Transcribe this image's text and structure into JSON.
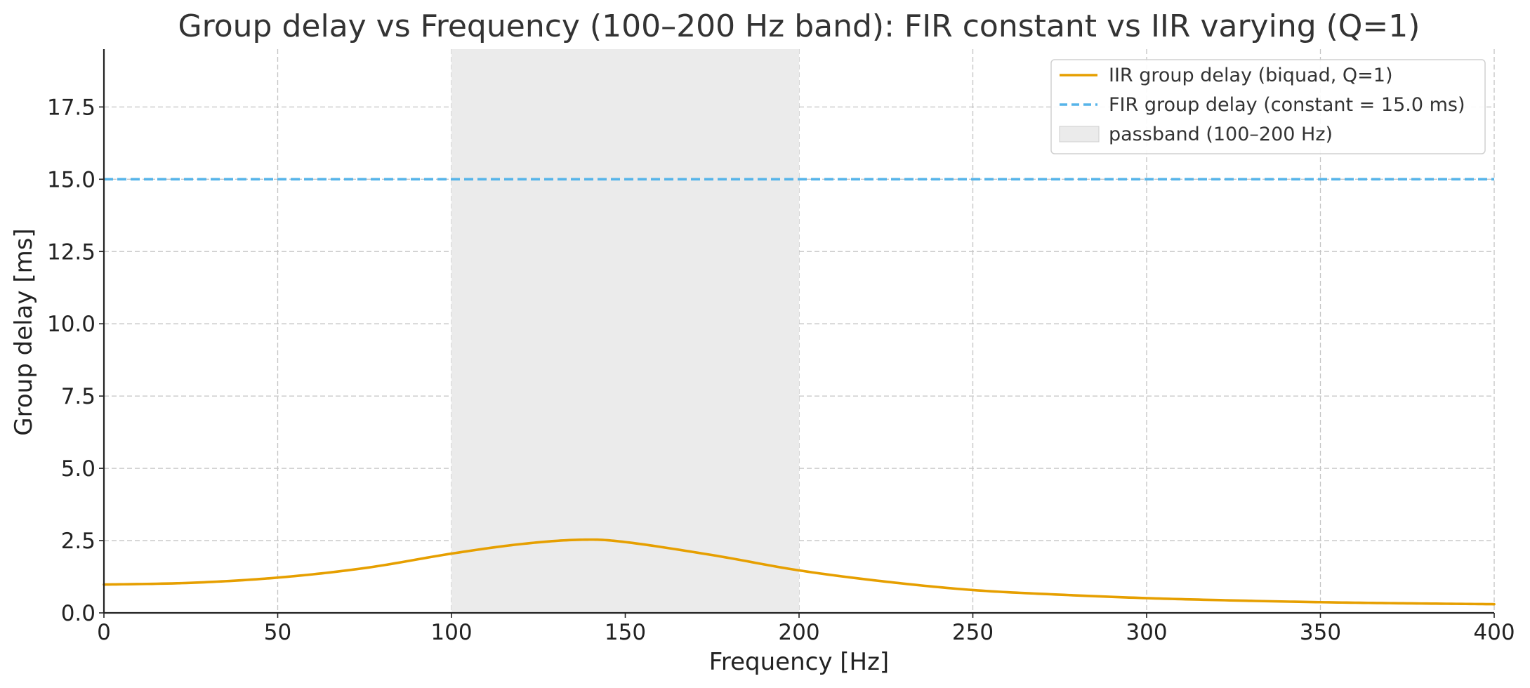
{
  "chart_data": {
    "type": "line",
    "title": "Group delay vs Frequency (100–200 Hz band): FIR constant vs IIR varying (Q=1)",
    "xlabel": "Frequency [Hz]",
    "ylabel": "Group delay [ms]",
    "xlim": [
      0,
      400
    ],
    "ylim": [
      0,
      19.5
    ],
    "x_ticks": [
      0,
      50,
      100,
      150,
      200,
      250,
      300,
      350,
      400
    ],
    "y_ticks": [
      0.0,
      2.5,
      5.0,
      7.5,
      10.0,
      12.5,
      15.0,
      17.5
    ],
    "x_tick_labels": [
      "0",
      "50",
      "100",
      "150",
      "200",
      "250",
      "300",
      "350",
      "400"
    ],
    "y_tick_labels": [
      "0.0",
      "2.5",
      "5.0",
      "7.5",
      "10.0",
      "12.5",
      "15.0",
      "17.5"
    ],
    "grid": true,
    "legend_position": "top-right",
    "shaded_band": {
      "name": "passband (100–200 Hz)",
      "x_start": 100,
      "x_end": 200,
      "color": "#ebebeb"
    },
    "series": [
      {
        "name": "IIR group delay (biquad, Q=1)",
        "style": "solid",
        "color": "#e69f00",
        "x": [
          0,
          25,
          50,
          75,
          100,
          120,
          137,
          150,
          175,
          200,
          225,
          250,
          275,
          300,
          325,
          350,
          375,
          400
        ],
        "values": [
          0.98,
          1.04,
          1.22,
          1.55,
          2.05,
          2.38,
          2.53,
          2.45,
          2.0,
          1.47,
          1.08,
          0.79,
          0.63,
          0.51,
          0.43,
          0.37,
          0.33,
          0.3
        ]
      },
      {
        "name": "FIR group delay (constant = 15.0 ms)",
        "style": "dashed",
        "color": "#56b4e9",
        "x": [
          0,
          400
        ],
        "values": [
          15.0,
          15.0
        ]
      }
    ]
  }
}
